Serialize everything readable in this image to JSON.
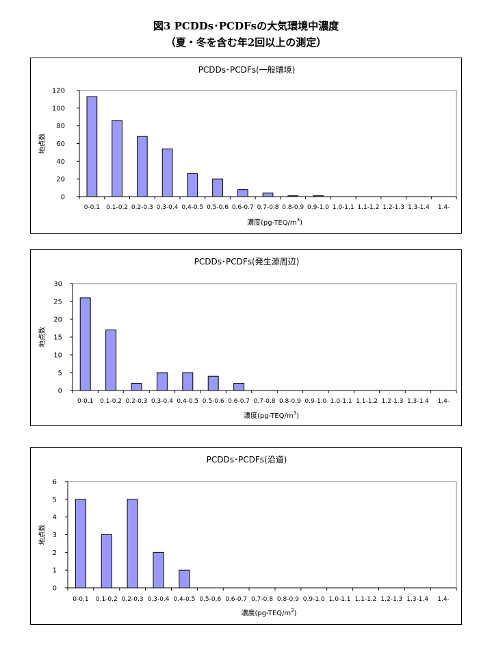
{
  "figure": {
    "title_line1": "図3  PCDDs･PCDFsの大気環境中濃度",
    "title_line2": "（夏・冬を含む年2回以上の測定）"
  },
  "chart_data": [
    {
      "type": "bar",
      "title": "PCDDs･PCDFs(一般環境)",
      "xlabel": "濃度(pg-TEQ/m",
      "xlabel_sup": "3",
      "xlabel_close": ")",
      "ylabel": "地点数",
      "categories": [
        "0-0.1",
        "0.1-0.2",
        "0.2-0.3",
        "0.3-0.4",
        "0.4-0.5",
        "0.5-0.6",
        "0.6-0.7",
        "0.7-0.8",
        "0.8-0.9",
        "0.9-1.0",
        "1.0-1.1",
        "1.1-1.2",
        "1.2-1.3",
        "1.3-1.4",
        "1.4-"
      ],
      "values": [
        113,
        86,
        68,
        54,
        26,
        20,
        8,
        4,
        1,
        1,
        0,
        0,
        0,
        0,
        0
      ],
      "yticks": [
        0,
        20,
        40,
        60,
        80,
        100,
        120
      ],
      "ylim": [
        0,
        120
      ],
      "grid": false,
      "bar_color": "#9999ff"
    },
    {
      "type": "bar",
      "title": "PCDDs･PCDFs(発生源周辺)",
      "xlabel": "濃度(pg-TEQ/m",
      "xlabel_sup": "3",
      "xlabel_close": ")",
      "ylabel": "地点数",
      "categories": [
        "0-0.1",
        "0.1-0.2",
        "0.2-0.3",
        "0.3-0.4",
        "0.4-0.5",
        "0.5-0.6",
        "0.6-0.7",
        "0.7-0.8",
        "0.8-0.9",
        "0.9-1.0",
        "1.0-1.1",
        "1.1-1.2",
        "1.2-1.3",
        "1.3-1.4",
        "1.4-"
      ],
      "values": [
        26,
        17,
        2,
        5,
        5,
        4,
        2,
        0,
        0,
        0,
        0,
        0,
        0,
        0,
        0
      ],
      "yticks": [
        0,
        5,
        10,
        15,
        20,
        25,
        30
      ],
      "ylim": [
        0,
        30
      ],
      "grid": false,
      "bar_color": "#9999ff"
    },
    {
      "type": "bar",
      "title": "PCDDs･PCDFs(沿道)",
      "xlabel": "濃度(pg-TEQ/m",
      "xlabel_sup": "3",
      "xlabel_close": ")",
      "ylabel": "地点数",
      "categories": [
        "0-0.1",
        "0.1-0.2",
        "0.2-0.3",
        "0.3-0.4",
        "0.4-0.5",
        "0.5-0.6",
        "0.6-0.7",
        "0.7-0.8",
        "0.8-0.9",
        "0.9-1.0",
        "1.0-1.1",
        "1.1-1.2",
        "1.2-1.3",
        "1.3-1.4",
        "1.4-"
      ],
      "values": [
        5,
        3,
        5,
        2,
        1,
        0,
        0,
        0,
        0,
        0,
        0,
        0,
        0,
        0,
        0
      ],
      "yticks": [
        0,
        1,
        2,
        3,
        4,
        5,
        6
      ],
      "ylim": [
        0,
        6
      ],
      "grid": false,
      "bar_color": "#9999ff"
    }
  ]
}
